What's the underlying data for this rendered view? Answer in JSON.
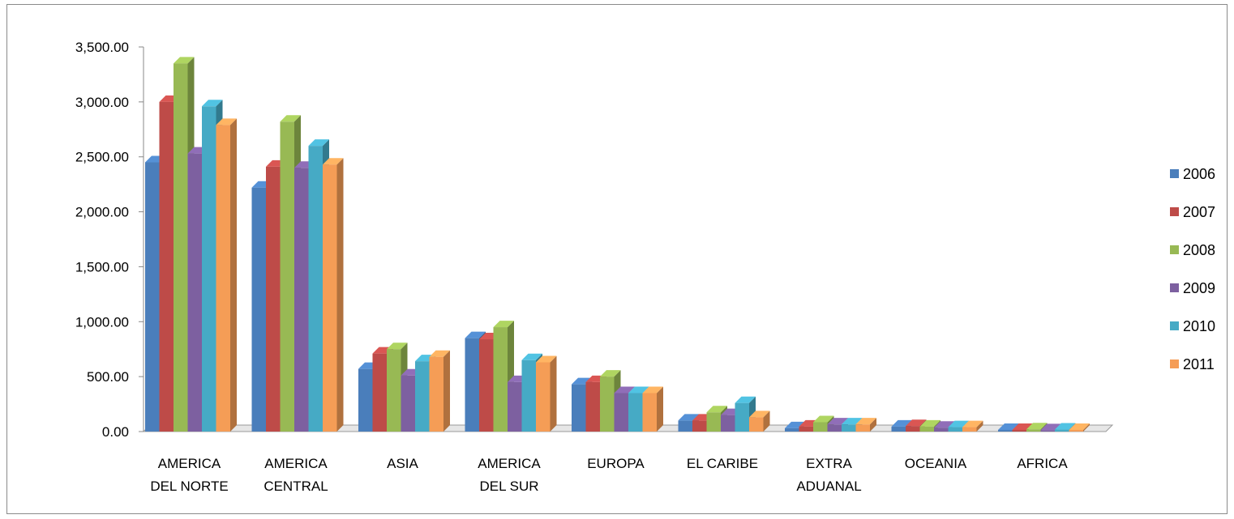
{
  "chart_data": {
    "type": "bar",
    "title": "",
    "xlabel": "",
    "ylabel": "",
    "ylim": [
      0,
      3500
    ],
    "y_ticks": [
      "0.00",
      "500.00",
      "1,000.00",
      "1,500.00",
      "2,000.00",
      "2,500.00",
      "3,000.00",
      "3,500.00"
    ],
    "categories": [
      [
        "AMERICA",
        "DEL NORTE"
      ],
      [
        "AMERICA",
        "CENTRAL"
      ],
      [
        "ASIA"
      ],
      [
        "AMERICA",
        "DEL SUR"
      ],
      [
        "EUROPA"
      ],
      [
        "EL CARIBE"
      ],
      [
        "EXTRA",
        "ADUANAL"
      ],
      [
        "OCEANIA"
      ],
      [
        "AFRICA"
      ]
    ],
    "series": [
      {
        "name": "2006",
        "color": "#4A7EBB",
        "values": [
          2450,
          2220,
          570,
          850,
          430,
          100,
          30,
          45,
          15
        ]
      },
      {
        "name": "2007",
        "color": "#BE4B48",
        "values": [
          3000,
          2410,
          710,
          840,
          450,
          100,
          45,
          50,
          15
        ]
      },
      {
        "name": "2008",
        "color": "#98B954",
        "values": [
          3350,
          2820,
          750,
          950,
          500,
          175,
          85,
          45,
          20
        ]
      },
      {
        "name": "2009",
        "color": "#7D60A0",
        "values": [
          2530,
          2400,
          510,
          450,
          350,
          150,
          65,
          35,
          12
        ]
      },
      {
        "name": "2010",
        "color": "#46AAC5",
        "values": [
          2960,
          2600,
          640,
          650,
          350,
          260,
          65,
          40,
          18
        ]
      },
      {
        "name": "2011",
        "color": "#F59D56",
        "values": [
          2790,
          2430,
          680,
          630,
          350,
          130,
          65,
          40,
          15
        ]
      }
    ],
    "legend_position": "right",
    "grid": false
  }
}
